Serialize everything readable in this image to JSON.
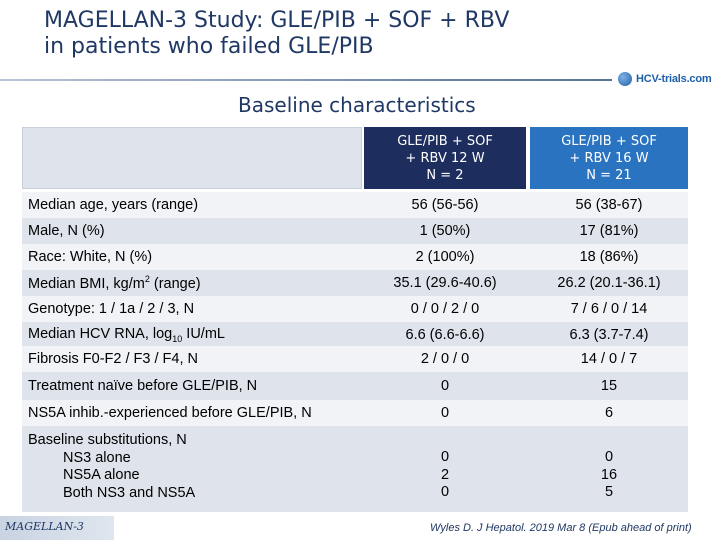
{
  "title": {
    "line1": "MAGELLAN-3 Study: GLE/PIB + SOF + RBV",
    "line2": "in patients who failed GLE/PIB"
  },
  "logo": {
    "text": "HCV-trials.com",
    "icon": "hcv-trials-logo-icon"
  },
  "subtitle": "Baseline characteristics",
  "table": {
    "columns": [
      {
        "line1": "GLE/PIB + SOF",
        "line2": "+ RBV 12 W",
        "line3": "N = 2"
      },
      {
        "line1": "GLE/PIB + SOF",
        "line2": "+ RBV 16 W",
        "line3": "N = 21"
      }
    ],
    "rows": [
      {
        "label": "Median age, years (range)",
        "v1": "56 (56-56)",
        "v2": "56 (38-67)"
      },
      {
        "label": "Male, N (%)",
        "v1": "1 (50%)",
        "v2": "17 (81%)"
      },
      {
        "label": "Race: White, N (%)",
        "v1": "2 (100%)",
        "v2": "18 (86%)"
      },
      {
        "label_pre": "Median BMI, kg/m",
        "label_sup": "2",
        "label_post": " (range)",
        "v1": "35.1 (29.6-40.6)",
        "v2": "26.2 (20.1-36.1)"
      },
      {
        "label": "Genotype: 1 / 1a / 2 / 3, N",
        "v1": "0 / 0 / 2 / 0",
        "v2": "7 / 6 / 0 / 14"
      },
      {
        "label_pre": "Median HCV RNA, log",
        "label_sub": "10",
        "label_post": " IU/mL",
        "v1": "6.6 (6.6-6.6)",
        "v2": "6.3 (3.7-7.4)"
      },
      {
        "label": "Fibrosis F0-F2 / F3 /  F4, N",
        "v1": "2 / 0 / 0",
        "v2": "14 / 0 / 7"
      },
      {
        "label": "Treatment naïve before GLE/PIB, N",
        "v1": "0",
        "v2": "15"
      },
      {
        "label": "NS5A inhib.-experienced before GLE/PIB, N",
        "v1": "0",
        "v2": "6"
      }
    ],
    "subst": {
      "label": "Baseline substitutions, N",
      "items": [
        {
          "label": "NS3 alone",
          "v1": "0",
          "v2": "0"
        },
        {
          "label": "NS5A alone",
          "v1": "2",
          "v2": "16"
        },
        {
          "label": "Both NS3 and NS5A",
          "v1": "0",
          "v2": "5"
        }
      ]
    }
  },
  "footer": {
    "left": "MAGELLAN-3",
    "right": "Wyles D. J Hepatol. 2019 Mar 8 (Epub ahead of print)"
  },
  "colors": {
    "title": "#1f3864",
    "col1_header": "#1c2d5e",
    "col2_header": "#2a73c1",
    "row_light": "#f1f3f7",
    "row_dark": "#dfe4ec"
  }
}
